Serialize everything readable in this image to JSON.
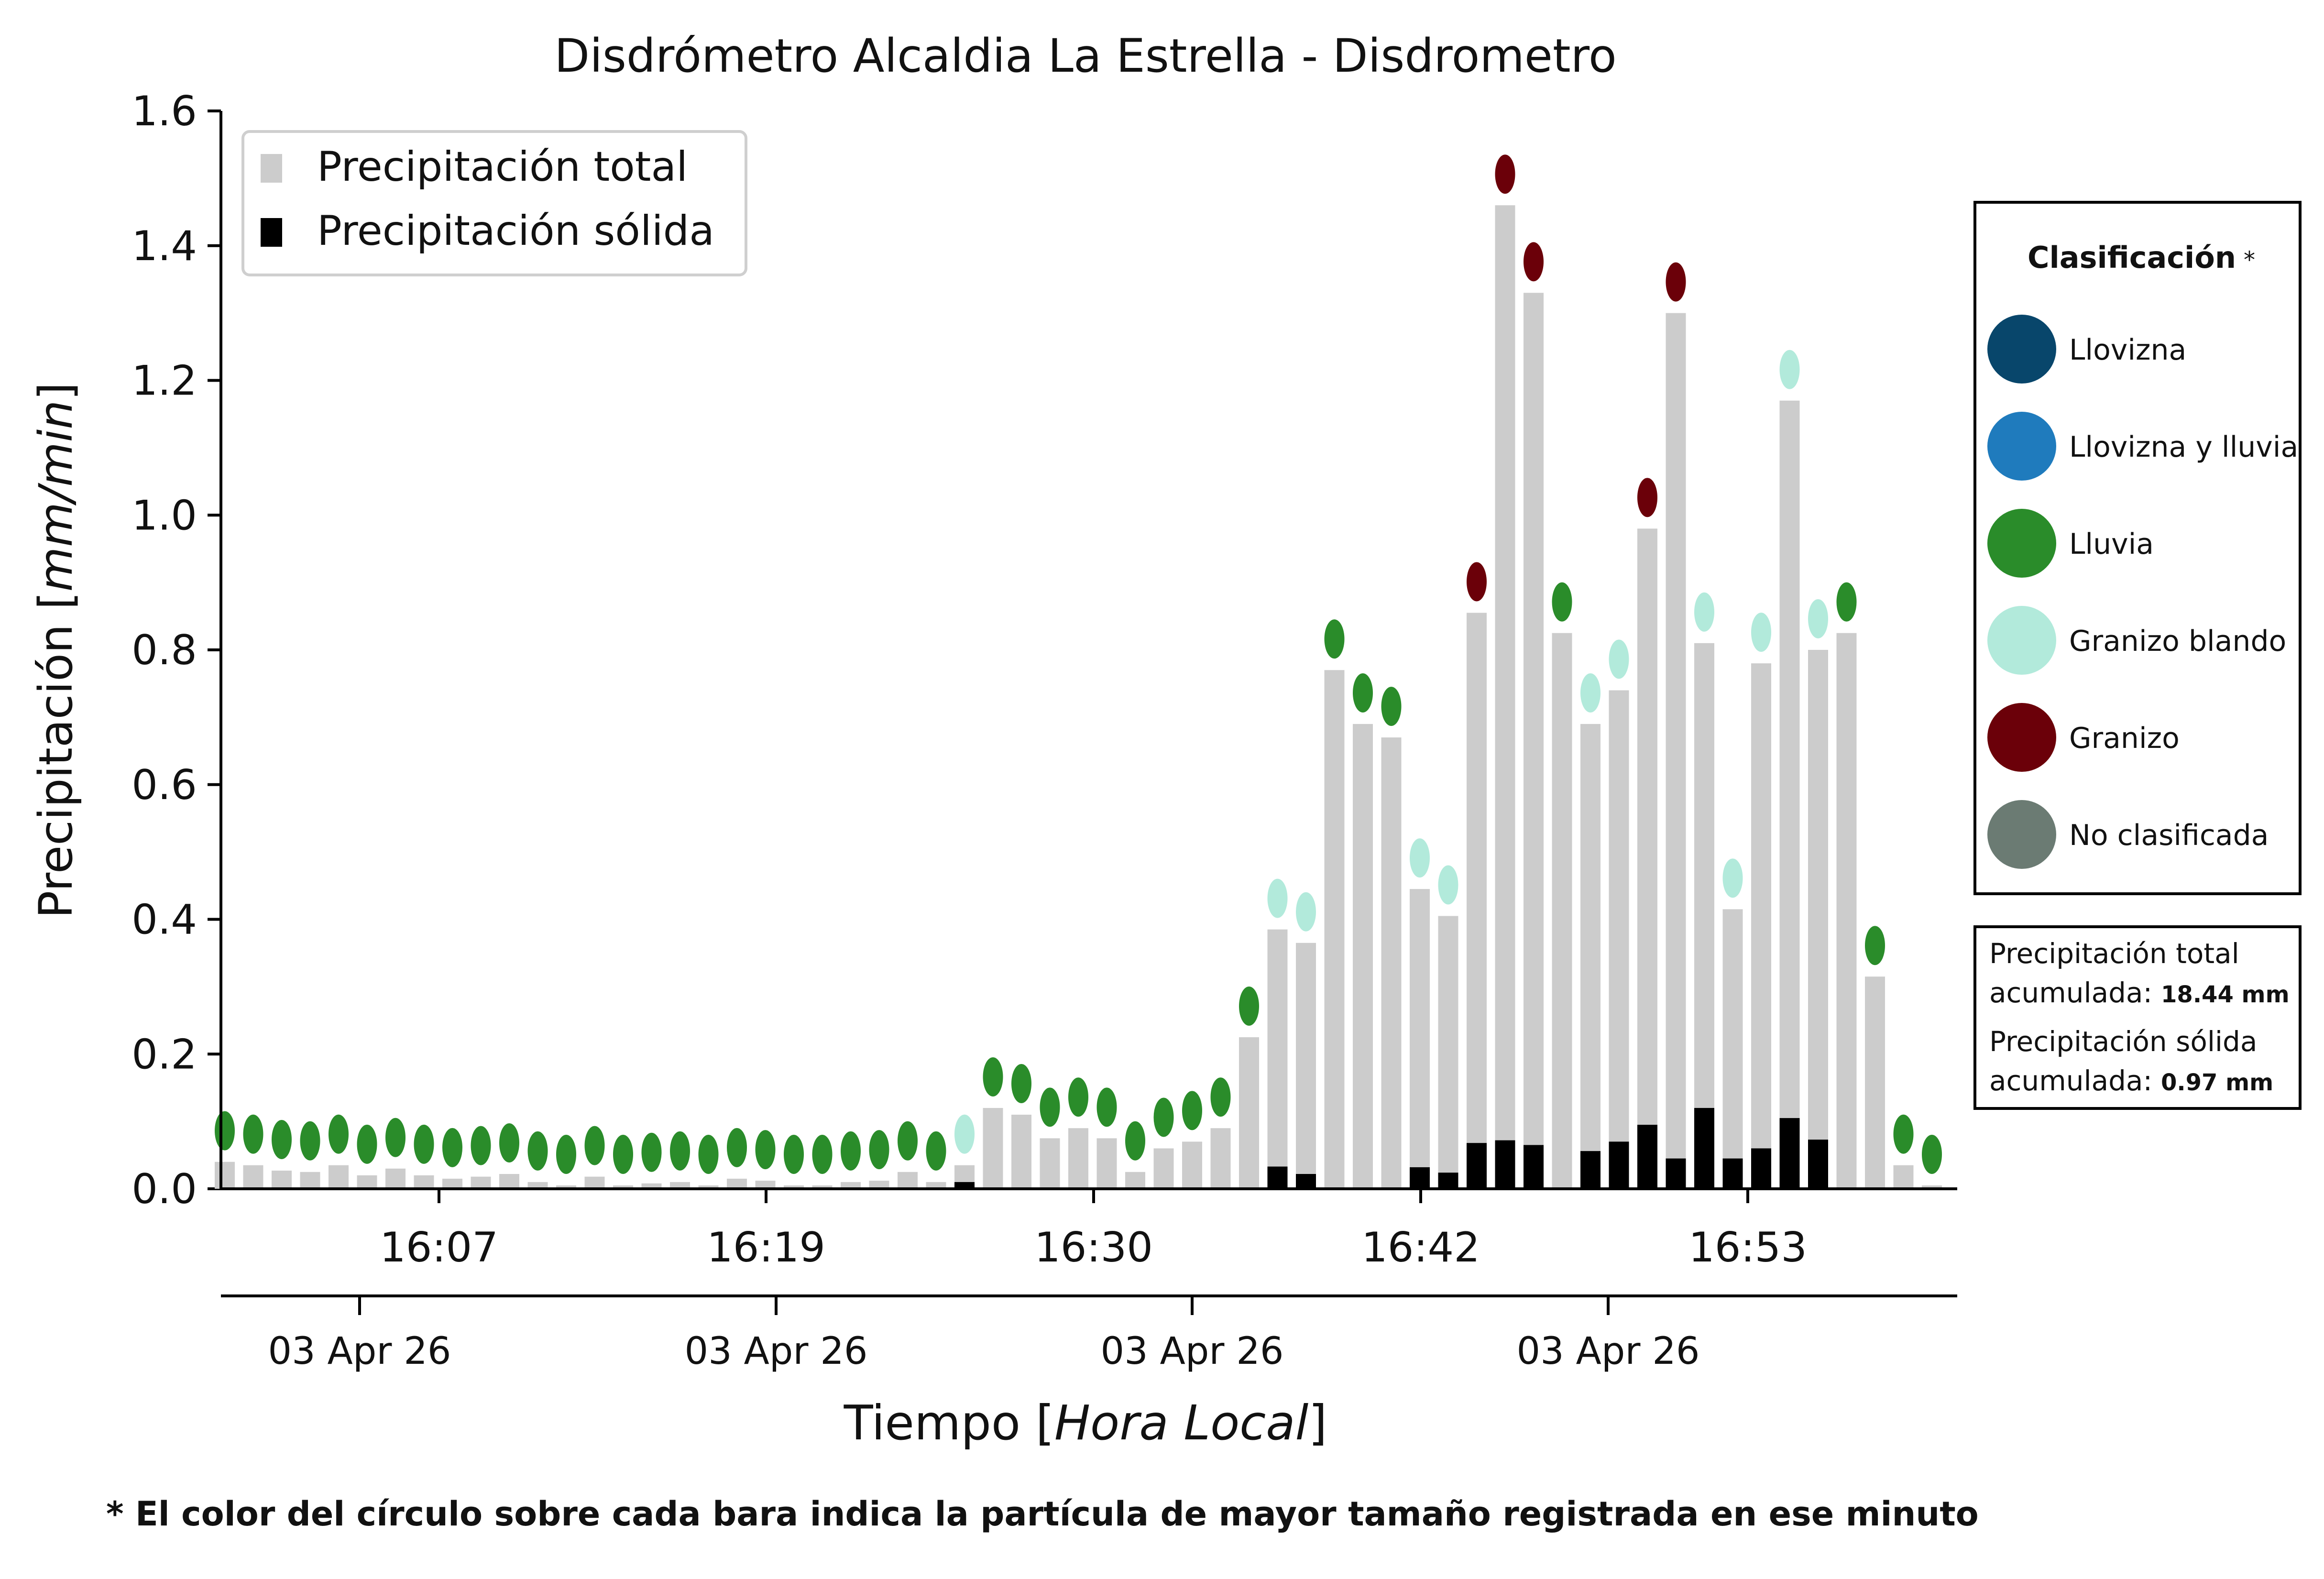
{
  "chart_data": {
    "type": "bar",
    "title": "Disdrómetro Alcaldia La Estrella - Disdrometro",
    "ylabel_prefix": "Precipitación [",
    "ylabel_unit": "mm/min",
    "ylabel_suffix": "]",
    "xlabel_prefix": "Tiempo [",
    "xlabel_unit": "Hora Local",
    "xlabel_suffix": "]",
    "ylim": [
      0,
      1.6
    ],
    "yticks": [
      "0.0",
      "0.2",
      "0.4",
      "0.6",
      "0.8",
      "1.0",
      "1.2",
      "1.4",
      "1.6"
    ],
    "time_ticks": [
      "16:07",
      "16:19",
      "16:30",
      "16:42",
      "16:53"
    ],
    "date_ticks": [
      "03 Apr 26",
      "03 Apr 26",
      "03 Apr 26",
      "03 Apr 26"
    ],
    "legend": {
      "total_label": "Precipitación total",
      "solid_label": "Precipitación sólida",
      "total_color": "#cccccc",
      "solid_color": "#000000"
    },
    "classification": {
      "title": "Clasificación",
      "star": "*",
      "items": [
        {
          "label": "Llovizna",
          "color": "#08466b"
        },
        {
          "label": "Llovizna y lluvia",
          "color": "#1f7bbd"
        },
        {
          "label": "Lluvia",
          "color": "#2a8c2a"
        },
        {
          "label": "Granizo blando",
          "color": "#b2eadb"
        },
        {
          "label": "Granizo",
          "color": "#6b0009"
        },
        {
          "label": "No clasificada",
          "color": "#6b7b73"
        }
      ]
    },
    "accumulated": {
      "total_line1": "Precipitación total",
      "total_line2": "acumulada:",
      "total_value": "18.44 mm",
      "solid_line1": "Precipitación sólida",
      "solid_line2": "acumulada:",
      "solid_value": "0.97 mm"
    },
    "footnote": "* El color del círculo sobre cada bara indica la partícula de mayor tamaño registrada en ese minuto",
    "series": [
      {
        "name": "Precipitación total",
        "values": [
          0.04,
          0.035,
          0.027,
          0.025,
          0.035,
          0.02,
          0.03,
          0.02,
          0.015,
          0.018,
          0.022,
          0.01,
          0.005,
          0.018,
          0.005,
          0.008,
          0.01,
          0.005,
          0.015,
          0.012,
          0.005,
          0.005,
          0.01,
          0.012,
          0.025,
          0.01,
          0.035,
          0.12,
          0.11,
          0.075,
          0.09,
          0.075,
          0.025,
          0.06,
          0.07,
          0.09,
          0.225,
          0.385,
          0.365,
          0.77,
          0.69,
          0.67,
          0.445,
          0.405,
          0.855,
          1.46,
          1.33,
          0.825,
          0.69,
          0.74,
          0.98,
          1.3,
          0.81,
          0.415,
          0.78,
          1.17,
          0.8,
          0.825,
          0.315,
          0.035,
          0.005
        ]
      },
      {
        "name": "Precipitación sólida",
        "values": [
          0,
          0,
          0,
          0,
          0,
          0,
          0,
          0,
          0,
          0,
          0,
          0,
          0,
          0,
          0,
          0,
          0,
          0,
          0,
          0,
          0,
          0,
          0,
          0,
          0,
          0,
          0.01,
          0,
          0,
          0,
          0,
          0,
          0,
          0,
          0,
          0,
          0,
          0.033,
          0.022,
          0,
          0,
          0,
          0.032,
          0.024,
          0.068,
          0.072,
          0.065,
          0,
          0.056,
          0.07,
          0.095,
          0.045,
          0.12,
          0.045,
          0.06,
          0.105,
          0.073,
          0,
          0,
          0,
          0
        ]
      }
    ],
    "particle_class": [
      "Lluvia",
      "Lluvia",
      "Lluvia",
      "Lluvia",
      "Lluvia",
      "Lluvia",
      "Lluvia",
      "Lluvia",
      "Lluvia",
      "Lluvia",
      "Lluvia",
      "Lluvia",
      "Lluvia",
      "Lluvia",
      "Lluvia",
      "Lluvia",
      "Lluvia",
      "Lluvia",
      "Lluvia",
      "Lluvia",
      "Lluvia",
      "Lluvia",
      "Lluvia",
      "Lluvia",
      "Lluvia",
      "Lluvia",
      "Granizo blando",
      "Lluvia",
      "Lluvia",
      "Lluvia",
      "Lluvia",
      "Lluvia",
      "Lluvia",
      "Lluvia",
      "Lluvia",
      "Lluvia",
      "Lluvia",
      "Granizo blando",
      "Granizo blando",
      "Lluvia",
      "Lluvia",
      "Lluvia",
      "Granizo blando",
      "Granizo blando",
      "Granizo",
      "Granizo",
      "Granizo",
      "Lluvia",
      "Granizo blando",
      "Granizo blando",
      "Granizo",
      "Granizo",
      "Granizo blando",
      "Granizo blando",
      "Granizo blando",
      "Granizo blando",
      "Granizo blando",
      "Lluvia",
      "Lluvia",
      "Lluvia",
      "Lluvia"
    ]
  }
}
